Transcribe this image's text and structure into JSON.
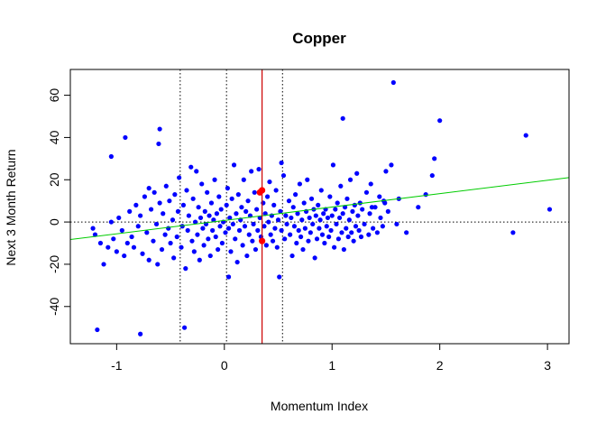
{
  "chart_data": {
    "type": "scatter",
    "title": "Copper",
    "xlabel": "Momentum Index",
    "ylabel": "Next 3 Month Return",
    "xlim": [
      -1.43,
      3.2
    ],
    "ylim": [
      -57.6,
      72.2
    ],
    "xticks": [
      -1,
      0,
      1,
      2,
      3
    ],
    "yticks": [
      -40,
      -20,
      0,
      20,
      40,
      60
    ],
    "grid": false,
    "legend": "none",
    "colors": {
      "points": "#0000ff",
      "highlight": "#ff0000",
      "regression": "#00cc00",
      "current_line": "#cc0000",
      "reference_lines": "#000000"
    },
    "regression_line": {
      "x": [
        -1.43,
        3.2
      ],
      "y": [
        -8.3,
        21.0
      ]
    },
    "vertical_reference_lines": [
      -0.41,
      0.02,
      0.54
    ],
    "current_value_line": 0.35,
    "horizontal_reference_line": 0,
    "highlighted_points": [
      {
        "x": 0.35,
        "y": 15
      },
      {
        "x": 0.33,
        "y": 14
      },
      {
        "x": 0.35,
        "y": -9
      }
    ],
    "points": [
      [
        -1.18,
        -51
      ],
      [
        -1.05,
        31
      ],
      [
        -0.92,
        40
      ],
      [
        -0.78,
        -53
      ],
      [
        -0.6,
        44
      ],
      [
        -0.61,
        37
      ],
      [
        -0.37,
        -50
      ],
      [
        1.1,
        49
      ],
      [
        1.57,
        66
      ],
      [
        2.0,
        48
      ],
      [
        2.8,
        41
      ],
      [
        3.02,
        6
      ],
      [
        2.68,
        -5
      ],
      [
        1.69,
        -5
      ],
      [
        1.8,
        7
      ],
      [
        1.87,
        13
      ],
      [
        1.93,
        22
      ],
      [
        1.95,
        30
      ],
      [
        1.48,
        10
      ],
      [
        1.37,
        7
      ],
      [
        0.53,
        28
      ],
      [
        0.51,
        -26
      ],
      [
        0.04,
        -26
      ],
      [
        -1.22,
        -3
      ],
      [
        -1.2,
        -6
      ],
      [
        -1.15,
        -10
      ],
      [
        -1.12,
        -20
      ],
      [
        -1.08,
        -12
      ],
      [
        -1.05,
        0
      ],
      [
        -1.03,
        -8
      ],
      [
        -1.0,
        -14
      ],
      [
        -0.98,
        2
      ],
      [
        -0.95,
        -4
      ],
      [
        -0.93,
        -16
      ],
      [
        -0.9,
        -10
      ],
      [
        -0.88,
        5
      ],
      [
        -0.86,
        -7
      ],
      [
        -0.84,
        -12
      ],
      [
        -0.82,
        8
      ],
      [
        -0.8,
        -2
      ],
      [
        -0.78,
        3
      ],
      [
        -0.76,
        -15
      ],
      [
        -0.74,
        12
      ],
      [
        -0.72,
        -5
      ],
      [
        -0.7,
        16
      ],
      [
        -0.7,
        -18
      ],
      [
        -0.68,
        6
      ],
      [
        -0.66,
        -9
      ],
      [
        -0.65,
        14
      ],
      [
        -0.63,
        -1
      ],
      [
        -0.62,
        -20
      ],
      [
        -0.6,
        9
      ],
      [
        -0.58,
        -13
      ],
      [
        -0.57,
        4
      ],
      [
        -0.55,
        -6
      ],
      [
        -0.54,
        17
      ],
      [
        -0.52,
        -3
      ],
      [
        -0.51,
        10
      ],
      [
        -0.5,
        -10
      ],
      [
        -0.48,
        1
      ],
      [
        -0.47,
        -17
      ],
      [
        -0.46,
        13
      ],
      [
        -0.44,
        -7
      ],
      [
        -0.43,
        5
      ],
      [
        -0.42,
        21
      ],
      [
        -0.4,
        -12
      ],
      [
        -0.39,
        -2
      ],
      [
        -0.38,
        8
      ],
      [
        -0.36,
        -22
      ],
      [
        -0.35,
        15
      ],
      [
        -0.34,
        -4
      ],
      [
        -0.33,
        3
      ],
      [
        -0.31,
        26
      ],
      [
        -0.3,
        -9
      ],
      [
        -0.29,
        11
      ],
      [
        -0.28,
        -14
      ],
      [
        -0.27,
        0
      ],
      [
        -0.26,
        24
      ],
      [
        -0.25,
        -6
      ],
      [
        -0.24,
        7
      ],
      [
        -0.23,
        -18
      ],
      [
        -0.22,
        2
      ],
      [
        -0.21,
        18
      ],
      [
        -0.2,
        -3
      ],
      [
        -0.19,
        -11
      ],
      [
        -0.18,
        5
      ],
      [
        -0.17,
        -1
      ],
      [
        -0.16,
        14
      ],
      [
        -0.15,
        -8
      ],
      [
        -0.14,
        3
      ],
      [
        -0.13,
        -16
      ],
      [
        -0.12,
        9
      ],
      [
        -0.11,
        -4
      ],
      [
        -0.1,
        1
      ],
      [
        -0.09,
        20
      ],
      [
        -0.08,
        -7
      ],
      [
        -0.07,
        4
      ],
      [
        -0.06,
        -13
      ],
      [
        -0.05,
        12
      ],
      [
        -0.04,
        -2
      ],
      [
        -0.03,
        6
      ],
      [
        -0.02,
        -10
      ],
      [
        -0.01,
        0
      ],
      [
        0.01,
        -5
      ],
      [
        0.02,
        8
      ],
      [
        0.03,
        16
      ],
      [
        0.04,
        -3
      ],
      [
        0.05,
        2
      ],
      [
        0.06,
        -14
      ],
      [
        0.07,
        11
      ],
      [
        0.08,
        -1
      ],
      [
        0.09,
        27
      ],
      [
        0.1,
        -8
      ],
      [
        0.11,
        4
      ],
      [
        0.12,
        -19
      ],
      [
        0.13,
        13
      ],
      [
        0.14,
        -4
      ],
      [
        0.15,
        1
      ],
      [
        0.16,
        7
      ],
      [
        0.17,
        -11
      ],
      [
        0.18,
        20
      ],
      [
        0.19,
        -2
      ],
      [
        0.2,
        5
      ],
      [
        0.21,
        -16
      ],
      [
        0.22,
        10
      ],
      [
        0.23,
        -6
      ],
      [
        0.24,
        3
      ],
      [
        0.25,
        24
      ],
      [
        0.26,
        -9
      ],
      [
        0.27,
        -1
      ],
      [
        0.28,
        14
      ],
      [
        0.29,
        -13
      ],
      [
        0.3,
        6
      ],
      [
        0.31,
        -4
      ],
      [
        0.32,
        25
      ],
      [
        0.33,
        2
      ],
      [
        0.34,
        -7
      ],
      [
        0.36,
        9
      ],
      [
        0.37,
        -2
      ],
      [
        0.38,
        4
      ],
      [
        0.39,
        -11
      ],
      [
        0.4,
        12
      ],
      [
        0.41,
        0
      ],
      [
        0.42,
        19
      ],
      [
        0.43,
        -6
      ],
      [
        0.44,
        3
      ],
      [
        0.45,
        -9
      ],
      [
        0.46,
        8
      ],
      [
        0.47,
        -3
      ],
      [
        0.48,
        15
      ],
      [
        0.49,
        -12
      ],
      [
        0.5,
        1
      ],
      [
        0.52,
        5
      ],
      [
        0.53,
        -4
      ],
      [
        0.55,
        22
      ],
      [
        0.56,
        -8
      ],
      [
        0.57,
        3
      ],
      [
        0.58,
        -1
      ],
      [
        0.6,
        10
      ],
      [
        0.61,
        -6
      ],
      [
        0.62,
        2
      ],
      [
        0.63,
        -16
      ],
      [
        0.64,
        7
      ],
      [
        0.65,
        -2
      ],
      [
        0.66,
        13
      ],
      [
        0.67,
        -10
      ],
      [
        0.68,
        4
      ],
      [
        0.69,
        -4
      ],
      [
        0.7,
        18
      ],
      [
        0.71,
        -7
      ],
      [
        0.72,
        1
      ],
      [
        0.73,
        -13
      ],
      [
        0.74,
        9
      ],
      [
        0.75,
        -3
      ],
      [
        0.76,
        5
      ],
      [
        0.77,
        20
      ],
      [
        0.78,
        -9
      ],
      [
        0.79,
        2
      ],
      [
        0.8,
        -5
      ],
      [
        0.81,
        11
      ],
      [
        0.82,
        -1
      ],
      [
        0.83,
        6
      ],
      [
        0.84,
        -17
      ],
      [
        0.85,
        3
      ],
      [
        0.86,
        -8
      ],
      [
        0.87,
        8
      ],
      [
        0.88,
        -3
      ],
      [
        0.89,
        1
      ],
      [
        0.9,
        15
      ],
      [
        0.91,
        -6
      ],
      [
        0.92,
        4
      ],
      [
        0.93,
        -10
      ],
      [
        0.94,
        6
      ],
      [
        0.95,
        -2
      ],
      [
        0.96,
        2
      ],
      [
        0.97,
        -7
      ],
      [
        0.98,
        12
      ],
      [
        0.99,
        -4
      ],
      [
        1.0,
        3
      ],
      [
        1.01,
        27
      ],
      [
        1.02,
        -12
      ],
      [
        1.03,
        6
      ],
      [
        1.04,
        -1
      ],
      [
        1.05,
        9
      ],
      [
        1.06,
        -8
      ],
      [
        1.07,
        2
      ],
      [
        1.08,
        17
      ],
      [
        1.09,
        -5
      ],
      [
        1.1,
        4
      ],
      [
        1.11,
        -13
      ],
      [
        1.12,
        7
      ],
      [
        1.13,
        -3
      ],
      [
        1.14,
        11
      ],
      [
        1.15,
        -7
      ],
      [
        1.16,
        1
      ],
      [
        1.17,
        20
      ],
      [
        1.18,
        -5
      ],
      [
        1.19,
        5
      ],
      [
        1.2,
        -9
      ],
      [
        1.21,
        8
      ],
      [
        1.22,
        -2
      ],
      [
        1.23,
        23
      ],
      [
        1.24,
        3
      ],
      [
        1.25,
        -4
      ],
      [
        1.26,
        9
      ],
      [
        1.27,
        -7
      ],
      [
        1.28,
        6
      ],
      [
        1.3,
        -1
      ],
      [
        1.32,
        14
      ],
      [
        1.34,
        -6
      ],
      [
        1.35,
        4
      ],
      [
        1.36,
        18
      ],
      [
        1.38,
        -3
      ],
      [
        1.4,
        7
      ],
      [
        1.42,
        -5
      ],
      [
        1.44,
        12
      ],
      [
        1.45,
        2
      ],
      [
        1.47,
        -2
      ],
      [
        1.49,
        9
      ],
      [
        1.5,
        24
      ],
      [
        1.52,
        5
      ],
      [
        1.55,
        27
      ],
      [
        1.6,
        -1
      ],
      [
        1.62,
        11
      ]
    ]
  }
}
